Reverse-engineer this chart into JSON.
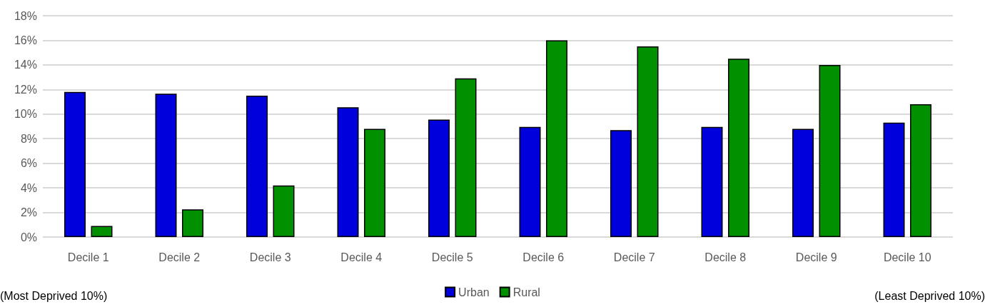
{
  "chart_data": {
    "type": "bar",
    "categories": [
      "Decile 1",
      "Decile 2",
      "Decile 3",
      "Decile 4",
      "Decile 5",
      "Decile 6",
      "Decile 7",
      "Decile 8",
      "Decile 9",
      "Decile 10"
    ],
    "series": [
      {
        "name": "Urban",
        "color": "#0000dd",
        "values": [
          11.8,
          11.65,
          11.5,
          10.55,
          9.55,
          8.95,
          8.7,
          8.95,
          8.8,
          9.3
        ]
      },
      {
        "name": "Rural",
        "color": "#009000",
        "values": [
          0.9,
          2.25,
          4.2,
          8.8,
          12.9,
          16.0,
          15.5,
          14.5,
          14.0,
          10.8
        ]
      }
    ],
    "ylim": [
      0,
      18
    ],
    "yticks": [
      {
        "value": 0,
        "label": "0%"
      },
      {
        "value": 2,
        "label": "2%"
      },
      {
        "value": 4,
        "label": "4%"
      },
      {
        "value": 6,
        "label": "6%"
      },
      {
        "value": 8,
        "label": "8%"
      },
      {
        "value": 10,
        "label": "10%"
      },
      {
        "value": 12,
        "label": "12%"
      },
      {
        "value": 14,
        "label": "14%"
      },
      {
        "value": 16,
        "label": "16%"
      },
      {
        "value": 18,
        "label": "18%"
      }
    ],
    "grid": "y",
    "legend": "bottom",
    "annotations": [
      "(Most Deprived 10%)",
      "(Least Deprived 10%)"
    ]
  }
}
